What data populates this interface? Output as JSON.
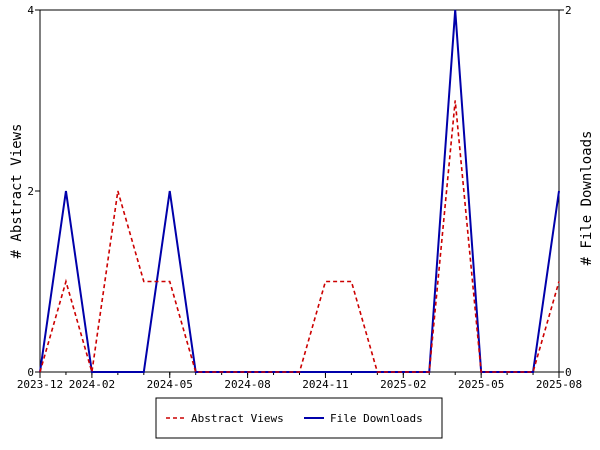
{
  "chart_data": {
    "type": "line",
    "x": [
      "2023-12",
      "2024-01",
      "2024-02",
      "2024-03",
      "2024-04",
      "2024-05",
      "2024-06",
      "2024-07",
      "2024-08",
      "2024-09",
      "2024-10",
      "2024-11",
      "2024-12",
      "2025-01",
      "2025-02",
      "2025-03",
      "2025-04",
      "2025-05",
      "2025-06",
      "2025-07",
      "2025-08"
    ],
    "x_tick_labels": [
      "2023-12",
      "2024-02",
      "2024-05",
      "2024-08",
      "2024-11",
      "2025-02",
      "2025-05",
      "2025-08"
    ],
    "series": [
      {
        "name": "Abstract Views",
        "axis": "left",
        "color": "#cc0000",
        "dash": "dashed",
        "values": [
          0,
          1,
          0,
          2,
          1,
          1,
          0,
          0,
          0,
          0,
          0,
          1,
          1,
          0,
          0,
          0,
          3,
          0,
          0,
          0,
          1
        ]
      },
      {
        "name": "File Downloads",
        "axis": "right",
        "color": "#0000aa",
        "dash": "solid",
        "values": [
          0,
          1,
          0,
          0,
          0,
          1,
          0,
          0,
          0,
          0,
          0,
          0,
          0,
          0,
          0,
          0,
          2,
          0,
          0,
          0,
          1
        ]
      }
    ],
    "ylabel": "# Abstract Views",
    "y2label": "# File Downloads",
    "ylim": [
      0,
      4
    ],
    "y_ticks": [
      0,
      2,
      4
    ],
    "y2lim": [
      0,
      2
    ],
    "y2_ticks": [
      0,
      2
    ],
    "grid": false,
    "legend_position": "bottom-center"
  }
}
